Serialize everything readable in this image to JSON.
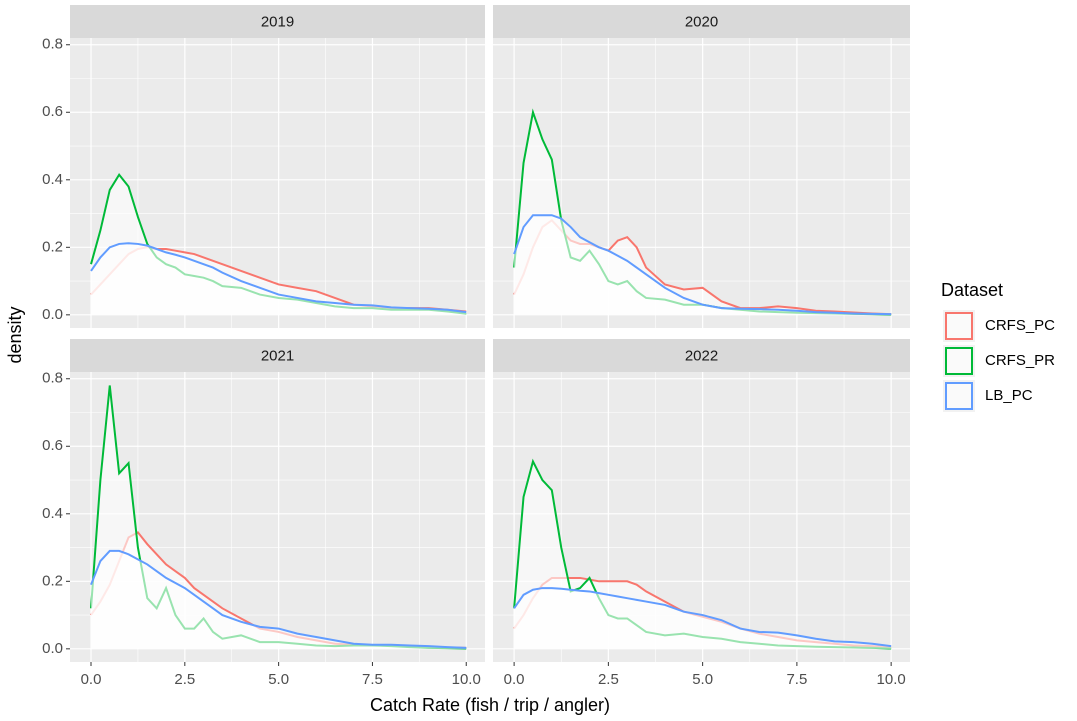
{
  "x_label": "Catch Rate (fish / trip / angler)",
  "y_label": "density",
  "legend_title": "Dataset",
  "chart_data": [
    {
      "type": "density",
      "title": "2019",
      "x": [
        0,
        0.25,
        0.5,
        0.75,
        1,
        1.25,
        1.5,
        1.75,
        2,
        2.25,
        2.5,
        2.75,
        3,
        3.25,
        3.5,
        4,
        4.5,
        5,
        5.5,
        6,
        6.5,
        7,
        7.5,
        8,
        8.5,
        9,
        9.5,
        10
      ],
      "series": [
        {
          "name": "CRFS_PC",
          "color": "#F8766D",
          "values": [
            0.06,
            0.09,
            0.12,
            0.15,
            0.18,
            0.195,
            0.2,
            0.195,
            0.195,
            0.19,
            0.185,
            0.18,
            0.17,
            0.16,
            0.15,
            0.13,
            0.11,
            0.09,
            0.08,
            0.07,
            0.05,
            0.03,
            0.025,
            0.02,
            0.02,
            0.02,
            0.015,
            0.01
          ]
        },
        {
          "name": "CRFS_PR",
          "color": "#00BA38",
          "values": [
            0.15,
            0.25,
            0.37,
            0.415,
            0.38,
            0.29,
            0.21,
            0.17,
            0.15,
            0.14,
            0.12,
            0.115,
            0.11,
            0.1,
            0.085,
            0.08,
            0.06,
            0.05,
            0.045,
            0.035,
            0.025,
            0.02,
            0.02,
            0.015,
            0.015,
            0.015,
            0.01,
            0.003
          ]
        },
        {
          "name": "LB_PC",
          "color": "#619CFF",
          "values": [
            0.13,
            0.17,
            0.2,
            0.21,
            0.212,
            0.21,
            0.205,
            0.195,
            0.185,
            0.178,
            0.17,
            0.16,
            0.15,
            0.14,
            0.125,
            0.1,
            0.08,
            0.06,
            0.05,
            0.04,
            0.035,
            0.03,
            0.028,
            0.022,
            0.02,
            0.018,
            0.015,
            0.008
          ]
        }
      ],
      "xlim": [
        -0.56,
        10.5
      ],
      "ylim": [
        -0.039,
        0.82
      ],
      "xticks": [
        {
          "value": 0,
          "label": "0.0"
        },
        2.5,
        {
          "value": 5,
          "label": "5.0"
        },
        7.5,
        {
          "value": 10,
          "label": "10.0"
        }
      ],
      "yticks": [
        {
          "value": 0,
          "label": "0.0"
        },
        0.2,
        0.4,
        0.6,
        0.8
      ],
      "grid": true
    },
    {
      "type": "density",
      "title": "2020",
      "x": [
        0,
        0.25,
        0.5,
        0.75,
        1,
        1.25,
        1.5,
        1.75,
        2,
        2.25,
        2.5,
        2.75,
        3,
        3.25,
        3.5,
        4,
        4.5,
        5,
        5.5,
        6,
        6.5,
        7,
        7.5,
        8,
        8.5,
        9,
        9.5,
        10
      ],
      "series": [
        {
          "name": "CRFS_PC",
          "color": "#F8766D",
          "values": [
            0.06,
            0.12,
            0.2,
            0.26,
            0.28,
            0.25,
            0.22,
            0.21,
            0.21,
            0.2,
            0.19,
            0.22,
            0.23,
            0.2,
            0.14,
            0.09,
            0.075,
            0.08,
            0.04,
            0.02,
            0.02,
            0.025,
            0.02,
            0.012,
            0.01,
            0.007,
            0.004,
            0.002
          ]
        },
        {
          "name": "CRFS_PR",
          "color": "#00BA38",
          "values": [
            0.14,
            0.45,
            0.6,
            0.52,
            0.46,
            0.28,
            0.17,
            0.16,
            0.19,
            0.15,
            0.1,
            0.09,
            0.1,
            0.07,
            0.05,
            0.045,
            0.03,
            0.03,
            0.02,
            0.015,
            0.01,
            0.008,
            0.006,
            0.005,
            0.004,
            0.003,
            0.002,
            0.001
          ]
        },
        {
          "name": "LB_PC",
          "color": "#619CFF",
          "values": [
            0.18,
            0.26,
            0.295,
            0.295,
            0.295,
            0.285,
            0.26,
            0.23,
            0.215,
            0.2,
            0.19,
            0.175,
            0.16,
            0.14,
            0.12,
            0.08,
            0.05,
            0.03,
            0.02,
            0.018,
            0.017,
            0.015,
            0.012,
            0.008,
            0.006,
            0.004,
            0.003,
            0.002
          ]
        }
      ],
      "xlim": [
        -0.56,
        10.5
      ],
      "ylim": [
        -0.039,
        0.82
      ],
      "xticks": [
        {
          "value": 0,
          "label": "0.0"
        },
        2.5,
        {
          "value": 5,
          "label": "5.0"
        },
        7.5,
        {
          "value": 10,
          "label": "10.0"
        }
      ],
      "yticks": [
        {
          "value": 0,
          "label": "0.0"
        },
        0.2,
        0.4,
        0.6,
        0.8
      ],
      "grid": true
    },
    {
      "type": "density",
      "title": "2021",
      "x": [
        0,
        0.25,
        0.5,
        0.75,
        1,
        1.25,
        1.5,
        1.75,
        2,
        2.25,
        2.5,
        2.75,
        3,
        3.25,
        3.5,
        4,
        4.5,
        5,
        5.5,
        6,
        6.5,
        7,
        7.5,
        8,
        8.5,
        9,
        9.5,
        10
      ],
      "series": [
        {
          "name": "CRFS_PC",
          "color": "#F8766D",
          "values": [
            0.1,
            0.14,
            0.19,
            0.26,
            0.33,
            0.345,
            0.31,
            0.28,
            0.25,
            0.23,
            0.21,
            0.18,
            0.16,
            0.14,
            0.12,
            0.09,
            0.06,
            0.05,
            0.035,
            0.025,
            0.015,
            0.012,
            0.01,
            0.01,
            0.008,
            0.006,
            0.004,
            0.003
          ]
        },
        {
          "name": "CRFS_PR",
          "color": "#00BA38",
          "values": [
            0.12,
            0.5,
            0.78,
            0.52,
            0.55,
            0.3,
            0.15,
            0.12,
            0.18,
            0.1,
            0.06,
            0.06,
            0.09,
            0.05,
            0.03,
            0.04,
            0.02,
            0.02,
            0.015,
            0.01,
            0.008,
            0.01,
            0.01,
            0.008,
            0.005,
            0.003,
            0.002,
            0.001
          ]
        },
        {
          "name": "LB_PC",
          "color": "#619CFF",
          "values": [
            0.19,
            0.26,
            0.29,
            0.29,
            0.28,
            0.265,
            0.25,
            0.23,
            0.21,
            0.195,
            0.18,
            0.16,
            0.14,
            0.12,
            0.1,
            0.08,
            0.065,
            0.06,
            0.045,
            0.035,
            0.025,
            0.015,
            0.012,
            0.012,
            0.01,
            0.008,
            0.005,
            0.003
          ]
        }
      ],
      "xlim": [
        -0.56,
        10.5
      ],
      "ylim": [
        -0.039,
        0.82
      ],
      "xticks": [
        {
          "value": 0,
          "label": "0.0"
        },
        2.5,
        {
          "value": 5,
          "label": "5.0"
        },
        7.5,
        {
          "value": 10,
          "label": "10.0"
        }
      ],
      "yticks": [
        {
          "value": 0,
          "label": "0.0"
        },
        0.2,
        0.4,
        0.6,
        0.8
      ],
      "grid": true
    },
    {
      "type": "density",
      "title": "2022",
      "x": [
        0,
        0.25,
        0.5,
        0.75,
        1,
        1.25,
        1.5,
        1.75,
        2,
        2.25,
        2.5,
        2.75,
        3,
        3.25,
        3.5,
        4,
        4.5,
        5,
        5.5,
        6,
        6.5,
        7,
        7.5,
        8,
        8.5,
        9,
        9.5,
        10
      ],
      "series": [
        {
          "name": "CRFS_PC",
          "color": "#F8766D",
          "values": [
            0.06,
            0.1,
            0.15,
            0.19,
            0.21,
            0.21,
            0.21,
            0.21,
            0.205,
            0.2,
            0.2,
            0.2,
            0.2,
            0.19,
            0.17,
            0.14,
            0.11,
            0.095,
            0.08,
            0.06,
            0.045,
            0.035,
            0.025,
            0.02,
            0.015,
            0.01,
            0.008,
            0.005
          ]
        },
        {
          "name": "CRFS_PR",
          "color": "#00BA38",
          "values": [
            0.12,
            0.45,
            0.555,
            0.5,
            0.47,
            0.3,
            0.17,
            0.18,
            0.21,
            0.15,
            0.1,
            0.09,
            0.09,
            0.07,
            0.05,
            0.04,
            0.045,
            0.035,
            0.03,
            0.02,
            0.015,
            0.01,
            0.008,
            0.006,
            0.005,
            0.004,
            0.003,
            0.001
          ]
        },
        {
          "name": "LB_PC",
          "color": "#619CFF",
          "values": [
            0.12,
            0.16,
            0.175,
            0.18,
            0.18,
            0.178,
            0.175,
            0.172,
            0.17,
            0.165,
            0.16,
            0.155,
            0.15,
            0.145,
            0.14,
            0.13,
            0.11,
            0.1,
            0.085,
            0.06,
            0.05,
            0.048,
            0.04,
            0.03,
            0.022,
            0.02,
            0.015,
            0.008
          ]
        }
      ],
      "xlim": [
        -0.56,
        10.5
      ],
      "ylim": [
        -0.039,
        0.82
      ],
      "xticks": [
        {
          "value": 0,
          "label": "0.0"
        },
        2.5,
        {
          "value": 5,
          "label": "5.0"
        },
        7.5,
        {
          "value": 10,
          "label": "10.0"
        }
      ],
      "yticks": [
        {
          "value": 0,
          "label": "0.0"
        },
        0.2,
        0.4,
        0.6,
        0.8
      ],
      "grid": true
    }
  ]
}
